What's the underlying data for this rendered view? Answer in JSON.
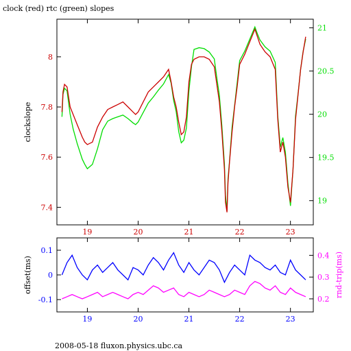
{
  "title": "clock (red) rtc (green) slopes",
  "footer": "2008-05-18 fluxon.physics.ubc.ca",
  "colors": {
    "red": "#cc0000",
    "green": "#00dd00",
    "blue": "#0000ff",
    "magenta": "#ff00ff",
    "black": "#000000"
  },
  "chart_data": [
    {
      "type": "line",
      "title": "clock (red) rtc (green) slopes",
      "ylabel": "clockslope",
      "y2label": "",
      "xlim": [
        18.4,
        23.45
      ],
      "ylim": [
        7.33,
        8.15
      ],
      "y2lim": [
        18.72,
        21.1
      ],
      "xticks": [
        19,
        20,
        21,
        22,
        23
      ],
      "yticks": [
        7.4,
        7.6,
        7.8,
        8
      ],
      "y2ticks": [
        19,
        19.5,
        20,
        20.5,
        21
      ],
      "series": [
        {
          "name": "clock",
          "axis": "left",
          "color": "red",
          "x": [
            18.5,
            18.52,
            18.55,
            18.6,
            18.66,
            18.72,
            18.8,
            18.9,
            18.95,
            19.0,
            19.1,
            19.2,
            19.3,
            19.4,
            19.5,
            19.6,
            19.7,
            19.8,
            19.9,
            19.95,
            20.0,
            20.1,
            20.2,
            20.3,
            20.4,
            20.5,
            20.6,
            20.65,
            20.7,
            20.75,
            20.8,
            20.85,
            20.9,
            20.95,
            21.0,
            21.05,
            21.1,
            21.2,
            21.3,
            21.4,
            21.5,
            21.55,
            21.6,
            21.65,
            21.7,
            21.72,
            21.75,
            21.77,
            21.8,
            21.85,
            21.9,
            21.95,
            22.0,
            22.1,
            22.2,
            22.3,
            22.35,
            22.4,
            22.5,
            22.6,
            22.7,
            22.75,
            22.8,
            22.85,
            22.9,
            22.95,
            23.0,
            23.05,
            23.1,
            23.15,
            23.2,
            23.25,
            23.3
          ],
          "y": [
            7.78,
            7.86,
            7.89,
            7.88,
            7.8,
            7.77,
            7.73,
            7.68,
            7.66,
            7.65,
            7.66,
            7.72,
            7.76,
            7.79,
            7.8,
            7.81,
            7.82,
            7.8,
            7.78,
            7.77,
            7.78,
            7.82,
            7.86,
            7.88,
            7.9,
            7.92,
            7.95,
            7.9,
            7.84,
            7.8,
            7.74,
            7.69,
            7.7,
            7.76,
            7.9,
            7.97,
            7.99,
            8.0,
            8.0,
            7.99,
            7.96,
            7.89,
            7.82,
            7.7,
            7.55,
            7.42,
            7.38,
            7.5,
            7.58,
            7.7,
            7.8,
            7.88,
            7.97,
            8.01,
            8.06,
            8.11,
            8.08,
            8.05,
            8.02,
            8.0,
            7.95,
            7.75,
            7.62,
            7.66,
            7.6,
            7.48,
            7.42,
            7.55,
            7.75,
            7.85,
            7.95,
            8.02,
            8.08
          ]
        },
        {
          "name": "rtc",
          "axis": "right",
          "color": "green",
          "x": [
            18.5,
            18.52,
            18.55,
            18.6,
            18.66,
            18.72,
            18.8,
            18.9,
            18.95,
            19.0,
            19.1,
            19.2,
            19.3,
            19.4,
            19.5,
            19.6,
            19.7,
            19.8,
            19.9,
            19.95,
            20.0,
            20.1,
            20.2,
            20.3,
            20.4,
            20.5,
            20.6,
            20.65,
            20.7,
            20.75,
            20.8,
            20.85,
            20.9,
            20.95,
            21.0,
            21.05,
            21.1,
            21.2,
            21.3,
            21.4,
            21.5,
            21.55,
            21.6,
            21.65,
            21.7,
            21.72,
            21.75,
            21.77,
            21.8,
            21.85,
            21.9,
            21.95,
            22.0,
            22.1,
            22.2,
            22.3,
            22.35,
            22.4,
            22.5,
            22.6,
            22.7,
            22.75,
            22.8,
            22.85,
            22.9,
            22.95,
            23.0,
            23.05,
            23.1,
            23.15,
            23.2,
            23.25,
            23.3
          ],
          "y": [
            19.97,
            20.23,
            20.3,
            20.27,
            20.0,
            19.83,
            19.66,
            19.48,
            19.42,
            19.37,
            19.42,
            19.6,
            19.82,
            19.92,
            19.95,
            19.97,
            19.99,
            19.95,
            19.9,
            19.88,
            19.91,
            20.02,
            20.13,
            20.2,
            20.28,
            20.35,
            20.46,
            20.36,
            20.16,
            20.03,
            19.8,
            19.67,
            19.7,
            19.84,
            20.27,
            20.55,
            20.75,
            20.77,
            20.76,
            20.72,
            20.64,
            20.42,
            20.22,
            19.86,
            19.42,
            19.06,
            18.88,
            19.25,
            19.46,
            19.85,
            20.1,
            20.36,
            20.62,
            20.73,
            20.87,
            21.01,
            20.93,
            20.86,
            20.78,
            20.73,
            20.6,
            19.98,
            19.62,
            19.73,
            19.56,
            19.2,
            18.94,
            19.36,
            19.98,
            20.24,
            20.52,
            20.73,
            20.87
          ]
        }
      ]
    },
    {
      "type": "line",
      "ylabel": "offset(ms)",
      "y2label": "rnd-trip(ms)",
      "xlim": [
        18.4,
        23.45
      ],
      "ylim": [
        -0.15,
        0.15
      ],
      "y2lim": [
        0.14,
        0.48
      ],
      "xticks": [
        19,
        20,
        21,
        22,
        23
      ],
      "yticks": [
        -0.1,
        0,
        0.1
      ],
      "y2ticks": [
        0.2,
        0.3,
        0.4
      ],
      "series": [
        {
          "axis": "left",
          "color": "blue",
          "x": [
            18.5,
            18.6,
            18.7,
            18.8,
            18.9,
            19.0,
            19.1,
            19.2,
            19.3,
            19.4,
            19.5,
            19.6,
            19.7,
            19.8,
            19.9,
            20.0,
            20.1,
            20.2,
            20.3,
            20.4,
            20.5,
            20.6,
            20.7,
            20.8,
            20.9,
            21.0,
            21.1,
            21.2,
            21.3,
            21.4,
            21.5,
            21.6,
            21.7,
            21.8,
            21.9,
            22.0,
            22.1,
            22.2,
            22.3,
            22.4,
            22.5,
            22.6,
            22.7,
            22.8,
            22.9,
            23.0,
            23.1,
            23.2,
            23.3
          ],
          "y": [
            0.0,
            0.05,
            0.08,
            0.03,
            0.0,
            -0.02,
            0.02,
            0.04,
            0.01,
            0.03,
            0.05,
            0.02,
            0.0,
            -0.02,
            0.03,
            0.02,
            0.0,
            0.04,
            0.07,
            0.05,
            0.02,
            0.06,
            0.09,
            0.04,
            0.01,
            0.05,
            0.02,
            0.0,
            0.03,
            0.06,
            0.05,
            0.02,
            -0.03,
            0.01,
            0.04,
            0.02,
            0.0,
            0.08,
            0.06,
            0.05,
            0.03,
            0.02,
            0.04,
            0.01,
            0.0,
            0.06,
            0.02,
            0.0,
            -0.02
          ]
        },
        {
          "axis": "right",
          "color": "magenta",
          "x": [
            18.5,
            18.6,
            18.7,
            18.8,
            18.9,
            19.0,
            19.1,
            19.2,
            19.3,
            19.4,
            19.5,
            19.6,
            19.7,
            19.8,
            19.9,
            20.0,
            20.1,
            20.2,
            20.3,
            20.4,
            20.5,
            20.6,
            20.7,
            20.8,
            20.9,
            21.0,
            21.1,
            21.2,
            21.3,
            21.4,
            21.5,
            21.6,
            21.7,
            21.8,
            21.9,
            22.0,
            22.1,
            22.2,
            22.3,
            22.4,
            22.5,
            22.6,
            22.7,
            22.8,
            22.9,
            23.0,
            23.1,
            23.2,
            23.3
          ],
          "y": [
            0.2,
            0.21,
            0.22,
            0.21,
            0.2,
            0.21,
            0.22,
            0.23,
            0.21,
            0.22,
            0.23,
            0.22,
            0.21,
            0.2,
            0.22,
            0.23,
            0.22,
            0.24,
            0.26,
            0.25,
            0.23,
            0.24,
            0.25,
            0.22,
            0.21,
            0.23,
            0.22,
            0.21,
            0.22,
            0.24,
            0.23,
            0.22,
            0.21,
            0.22,
            0.24,
            0.23,
            0.22,
            0.26,
            0.28,
            0.27,
            0.25,
            0.24,
            0.26,
            0.23,
            0.22,
            0.25,
            0.23,
            0.22,
            0.21
          ]
        }
      ]
    }
  ]
}
